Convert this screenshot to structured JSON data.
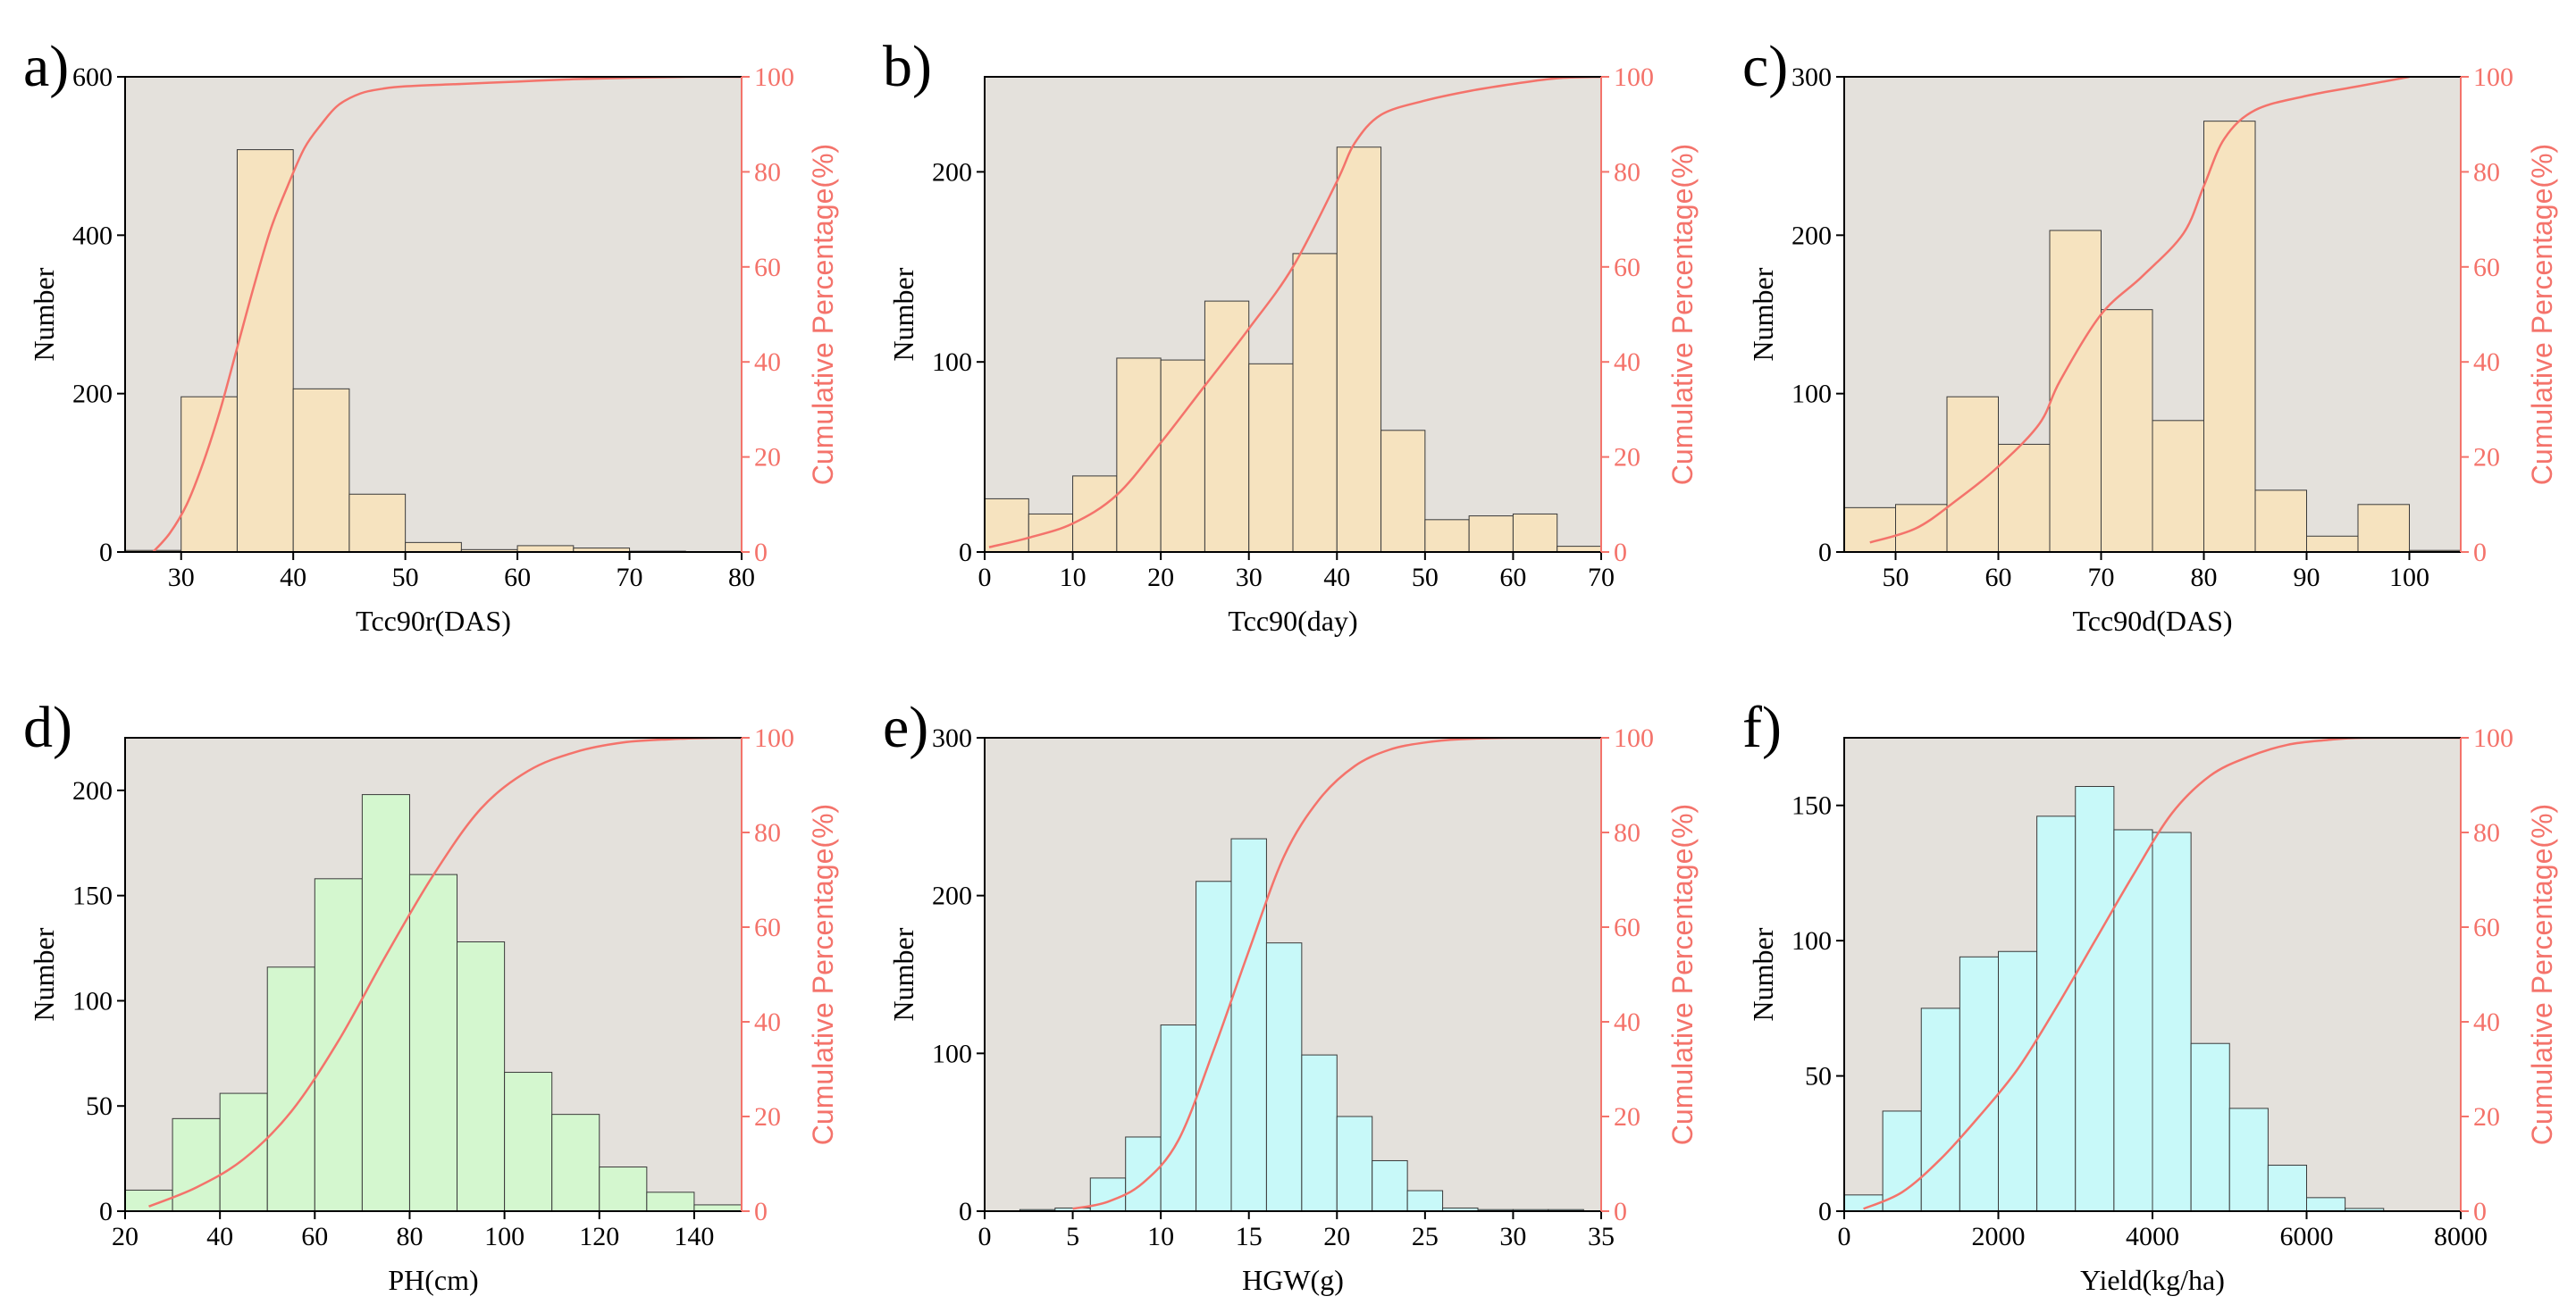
{
  "colors": {
    "plot_bg": "#e4e1dc",
    "bar_tan": "#f6e3bf",
    "bar_green": "#d4f7cf",
    "bar_cyan": "#c8f9f9",
    "bar_edge": "#3a3a3a",
    "cumulative_line": "#f4736b"
  },
  "chart_data": [
    {
      "panel": "a)",
      "type": "bar",
      "xlabel": "Tcc90r(DAS)",
      "ylabel": "Number",
      "y2label": "Cumulative Percentage(%)",
      "xlim": [
        25,
        80
      ],
      "ylim": [
        0,
        600
      ],
      "y2lim": [
        0,
        100
      ],
      "xticks": [
        30,
        40,
        50,
        60,
        70,
        80
      ],
      "yticks": [
        0,
        200,
        400,
        600
      ],
      "y2ticks": [
        0,
        20,
        40,
        60,
        80,
        100
      ],
      "bin_width": 5,
      "bin_starts": [
        25,
        30,
        35,
        40,
        45,
        50,
        55,
        60,
        65,
        70,
        75
      ],
      "values": [
        2,
        196,
        508,
        206,
        73,
        12,
        3,
        8,
        5,
        1,
        0
      ],
      "bar_color_key": "bar_tan",
      "cumulative": {
        "x": [
          27.5,
          29,
          30.5,
          32,
          33.5,
          35,
          36.5,
          38,
          39.5,
          41,
          42.5,
          44,
          46,
          48,
          50,
          55,
          60,
          65,
          70,
          75,
          80
        ],
        "y": [
          0,
          4,
          10,
          19,
          30,
          43,
          56,
          68,
          77,
          85,
          90,
          94,
          96.5,
          97.5,
          98,
          98.5,
          99,
          99.5,
          99.8,
          100,
          100
        ]
      }
    },
    {
      "panel": "b)",
      "type": "bar",
      "xlabel": "Tcc90(day)",
      "ylabel": "Number",
      "y2label": "Cumulative Percentage(%)",
      "xlim": [
        0,
        70
      ],
      "ylim": [
        0,
        250
      ],
      "y2lim": [
        0,
        100
      ],
      "xticks": [
        0,
        10,
        20,
        30,
        40,
        50,
        60,
        70
      ],
      "yticks": [
        0,
        100,
        200
      ],
      "y2ticks": [
        0,
        20,
        40,
        60,
        80,
        100
      ],
      "bin_width": 5,
      "bin_starts": [
        0,
        5,
        10,
        15,
        20,
        25,
        30,
        35,
        40,
        45,
        50,
        55,
        60,
        65
      ],
      "values": [
        28,
        20,
        40,
        102,
        101,
        132,
        99,
        157,
        213,
        64,
        17,
        19,
        20,
        3
      ],
      "bar_color_key": "bar_tan",
      "cumulative": {
        "x": [
          0.5,
          5,
          10,
          15,
          20,
          25,
          30,
          35,
          40,
          42,
          45,
          50,
          55,
          60,
          65,
          70
        ],
        "y": [
          1,
          3,
          6,
          12,
          23,
          35,
          47,
          60,
          78,
          86,
          92,
          95,
          97,
          98.5,
          99.7,
          100
        ]
      }
    },
    {
      "panel": "c)",
      "type": "bar",
      "xlabel": "Tcc90d(DAS)",
      "ylabel": "Number",
      "y2label": "Cumulative Percentage(%)",
      "xlim": [
        45,
        105
      ],
      "ylim": [
        0,
        300
      ],
      "y2lim": [
        0,
        100
      ],
      "xticks": [
        50,
        60,
        70,
        80,
        90,
        100
      ],
      "yticks": [
        0,
        100,
        200,
        300
      ],
      "y2ticks": [
        0,
        20,
        40,
        60,
        80,
        100
      ],
      "bin_width": 5,
      "bin_starts": [
        45,
        50,
        55,
        60,
        65,
        70,
        75,
        80,
        85,
        90,
        95,
        100
      ],
      "values": [
        28,
        30,
        98,
        68,
        203,
        153,
        83,
        272,
        39,
        10,
        30,
        1
      ],
      "bar_color_key": "bar_tan",
      "cumulative": {
        "x": [
          47.5,
          52,
          56,
          60,
          64,
          66,
          70,
          74,
          78,
          80,
          82,
          85,
          90,
          95,
          100
        ],
        "y": [
          2,
          5,
          11,
          18,
          27,
          36,
          50,
          58,
          67,
          77,
          87,
          93,
          96,
          98,
          100
        ]
      }
    },
    {
      "panel": "d)",
      "type": "bar",
      "xlabel": "PH(cm)",
      "ylabel": "Number",
      "y2label": "Cumulative Percentage(%)",
      "xlim": [
        20,
        150
      ],
      "ylim": [
        0,
        225
      ],
      "y2lim": [
        0,
        100
      ],
      "xticks": [
        20,
        40,
        60,
        80,
        100,
        120,
        140
      ],
      "yticks": [
        0,
        50,
        100,
        150,
        200
      ],
      "y2ticks": [
        0,
        20,
        40,
        60,
        80,
        100
      ],
      "bin_width": 10,
      "bin_starts": [
        20,
        30,
        40,
        50,
        60,
        70,
        80,
        90,
        100,
        110,
        120,
        130,
        140
      ],
      "values": [
        10,
        44,
        56,
        116,
        158,
        198,
        160,
        128,
        66,
        46,
        21,
        9,
        3
      ],
      "bar_color_key": "bar_green",
      "cumulative": {
        "x": [
          25,
          35,
          45,
          55,
          65,
          75,
          85,
          95,
          105,
          115,
          125,
          135,
          145,
          150
        ],
        "y": [
          1,
          5,
          11,
          21,
          36,
          54,
          71,
          85,
          93,
          97,
          99,
          99.7,
          100,
          100
        ]
      }
    },
    {
      "panel": "e)",
      "type": "bar",
      "xlabel": "HGW(g)",
      "ylabel": "Number",
      "y2label": "Cumulative Percentage(%)",
      "xlim": [
        0,
        35
      ],
      "ylim": [
        0,
        300
      ],
      "y2lim": [
        0,
        100
      ],
      "xticks": [
        0,
        5,
        10,
        15,
        20,
        25,
        30,
        35
      ],
      "yticks": [
        0,
        100,
        200,
        300
      ],
      "y2ticks": [
        0,
        20,
        40,
        60,
        80,
        100
      ],
      "bin_width": 2,
      "bin_starts": [
        2,
        4,
        6,
        8,
        10,
        12,
        14,
        16,
        18,
        20,
        22,
        24,
        26,
        28,
        30,
        32
      ],
      "values": [
        1,
        2,
        21,
        47,
        118,
        209,
        236,
        170,
        99,
        60,
        32,
        13,
        2,
        1,
        1,
        1
      ],
      "bar_color_key": "bar_cyan",
      "cumulative": {
        "x": [
          5,
          7,
          9,
          11,
          13,
          15,
          17,
          19,
          21,
          23,
          25,
          27,
          30,
          35
        ],
        "y": [
          0.5,
          2,
          6,
          15,
          34,
          55,
          75,
          87,
          94,
          97.5,
          99,
          99.7,
          100,
          100
        ]
      }
    },
    {
      "panel": "f)",
      "type": "bar",
      "xlabel": "Yield(kg/ha)",
      "ylabel": "Number",
      "y2label": "Cumulative Percentage(%)",
      "xlim": [
        0,
        8000
      ],
      "ylim": [
        0,
        175
      ],
      "y2lim": [
        0,
        100
      ],
      "xticks": [
        0,
        2000,
        4000,
        6000,
        8000
      ],
      "yticks": [
        0,
        50,
        100,
        150
      ],
      "y2ticks": [
        0,
        20,
        40,
        60,
        80,
        100
      ],
      "bin_width": 500,
      "bin_starts": [
        0,
        500,
        1000,
        1500,
        2000,
        2500,
        3000,
        3500,
        4000,
        4500,
        5000,
        5500,
        6000,
        6500
      ],
      "values": [
        6,
        37,
        75,
        94,
        96,
        146,
        157,
        141,
        140,
        62,
        38,
        17,
        5,
        1
      ],
      "bar_color_key": "bar_cyan",
      "cumulative": {
        "x": [
          250,
          750,
          1250,
          1750,
          2250,
          2750,
          3250,
          3750,
          4250,
          4750,
          5250,
          5750,
          6250,
          6750,
          8000
        ],
        "y": [
          0.5,
          4,
          11,
          20,
          30,
          43,
          57,
          71,
          84,
          92,
          96,
          98.5,
          99.5,
          100,
          100
        ]
      }
    }
  ]
}
